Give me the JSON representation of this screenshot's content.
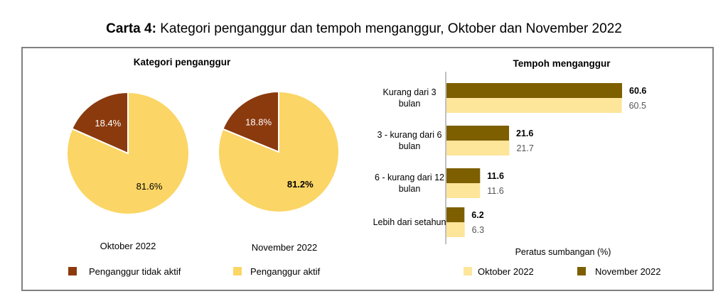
{
  "title": {
    "prefix": "Carta 4:",
    "text": "Kategori penganggur dan tempoh menganggur, Oktober dan November 2022"
  },
  "colors": {
    "tidak_aktif": "#8B3A0E",
    "aktif": "#FBD565",
    "oktober_bar": "#FDE59A",
    "november_bar": "#7D5F00"
  },
  "chart_data": [
    {
      "type": "pie",
      "title": "Kategori penganggur",
      "legend": [
        "Penganggur tidak aktif",
        "Penganggur aktif"
      ],
      "pies": [
        {
          "name": "Oktober 2022",
          "slices": [
            {
              "label": "Penganggur tidak aktif",
              "value": 18.4,
              "text": "18.4%",
              "bold": false
            },
            {
              "label": "Penganggur aktif",
              "value": 81.6,
              "text": "81.6%",
              "bold": false
            }
          ]
        },
        {
          "name": "November 2022",
          "slices": [
            {
              "label": "Penganggur tidak aktif",
              "value": 18.8,
              "text": "18.8%",
              "bold": false
            },
            {
              "label": "Penganggur aktif",
              "value": 81.2,
              "text": "81.2%",
              "bold": true
            }
          ]
        }
      ]
    },
    {
      "type": "bar",
      "orientation": "horizontal",
      "title": "Tempoh menganggur",
      "xlabel": "Peratus sumbangan (%)",
      "categories": [
        [
          "Kurang dari 3",
          "bulan"
        ],
        [
          "3 - kurang dari 6",
          "bulan"
        ],
        [
          "6 - kurang dari 12",
          "bulan"
        ],
        [
          "Lebih dari setahun"
        ]
      ],
      "series": [
        {
          "name": "November 2022",
          "values": [
            60.6,
            21.6,
            11.6,
            6.2
          ],
          "labels": [
            "60.6",
            "21.6",
            "11.6",
            "6.2"
          ]
        },
        {
          "name": "Oktober 2022",
          "values": [
            60.5,
            21.7,
            11.6,
            6.3
          ],
          "labels": [
            "60.5",
            "21.7",
            "11.6",
            "6.3"
          ]
        }
      ],
      "legend": [
        "Oktober 2022",
        "November 2022"
      ],
      "xlim": [
        0,
        60.6
      ]
    }
  ]
}
